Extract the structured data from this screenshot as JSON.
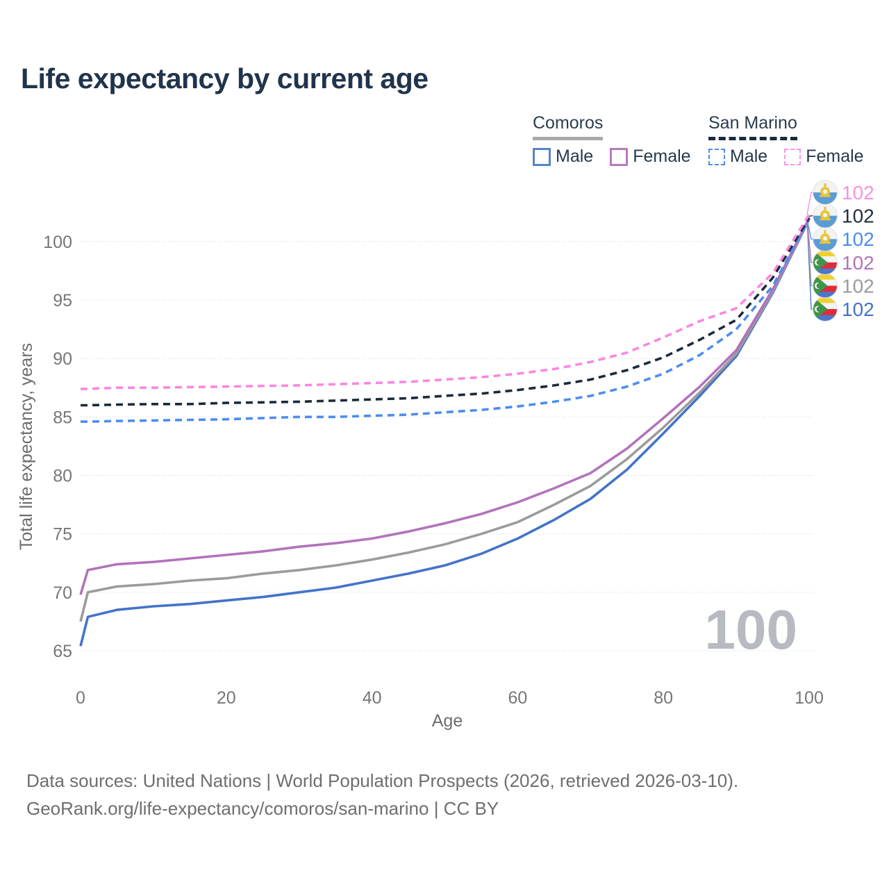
{
  "page": {
    "title": "Life expectancy by current age",
    "watermark": "100",
    "footer": {
      "line1": "Data sources: United Nations | World Population Prospects (2026, retrieved 2026-03-10).",
      "line2": "GeoRank.org/life-expectancy/comoros/san-marino | CC BY"
    }
  },
  "legend": {
    "groups": [
      {
        "label": "Comoros",
        "underline_style": "solid",
        "underline_color": "#a9a9a9",
        "items": [
          {
            "label": "Male",
            "color": "#5585c8",
            "dashed": false
          },
          {
            "label": "Female",
            "color": "#b778c0",
            "dashed": false
          }
        ]
      },
      {
        "label": "San Marino",
        "underline_style": "dashed",
        "underline_color": "#1b2a3a",
        "items": [
          {
            "label": "Male",
            "color": "#4d8cf0",
            "dashed": true
          },
          {
            "label": "Female",
            "color": "#fb93e3",
            "dashed": true
          }
        ]
      }
    ]
  },
  "chart_data": {
    "type": "line",
    "title": "Life expectancy by current age",
    "xlabel": "Age",
    "ylabel": "Total life expectancy, years",
    "xlim": [
      0,
      100
    ],
    "ylim": [
      65,
      102.5
    ],
    "x_ticks": [
      0,
      20,
      40,
      60,
      80,
      100
    ],
    "y_ticks": [
      65,
      70,
      75,
      80,
      85,
      90,
      95,
      100
    ],
    "grid": "horizontal-dotted",
    "grid_color": "#d9d9d9",
    "axis_text_color": "#767676",
    "legend_position": "top-right",
    "x": [
      0,
      1,
      5,
      10,
      15,
      20,
      25,
      30,
      35,
      40,
      45,
      50,
      55,
      60,
      65,
      70,
      75,
      80,
      85,
      90,
      95,
      100
    ],
    "series": [
      {
        "id": "comoros-male",
        "name": "Comoros Male",
        "country": "Comoros",
        "sex": "Male",
        "color": "#4373c9",
        "dashed": false,
        "flag": "comoros",
        "label_row": 5,
        "end_label": "102",
        "label_color": "#4373c9",
        "values": [
          65.4,
          67.9,
          68.5,
          68.8,
          69.0,
          69.3,
          69.6,
          70.0,
          70.4,
          71.0,
          71.6,
          72.3,
          73.3,
          74.6,
          76.2,
          78.0,
          80.5,
          83.6,
          86.8,
          90.2,
          95.6,
          101.9
        ]
      },
      {
        "id": "comoros-total",
        "name": "Comoros Total",
        "country": "Comoros",
        "sex": "Both",
        "color": "#9b9b9b",
        "dashed": false,
        "flag": "comoros",
        "label_row": 4,
        "end_label": "102",
        "label_color": "#9b9b9b",
        "values": [
          67.5,
          70.0,
          70.5,
          70.7,
          71.0,
          71.2,
          71.6,
          71.9,
          72.3,
          72.8,
          73.4,
          74.1,
          75.0,
          76.0,
          77.5,
          79.1,
          81.4,
          84.1,
          87.1,
          90.4,
          95.7,
          101.95
        ]
      },
      {
        "id": "comoros-female",
        "name": "Comoros Female",
        "country": "Comoros",
        "sex": "Female",
        "color": "#b273bb",
        "dashed": false,
        "flag": "comoros",
        "label_row": 3,
        "end_label": "102",
        "label_color": "#b273bb",
        "values": [
          69.8,
          71.9,
          72.4,
          72.6,
          72.9,
          73.2,
          73.5,
          73.9,
          74.2,
          74.6,
          75.2,
          75.9,
          76.7,
          77.7,
          78.9,
          80.2,
          82.3,
          84.9,
          87.6,
          90.7,
          95.9,
          102.0
        ]
      },
      {
        "id": "san-marino-male",
        "name": "San Marino Male",
        "country": "San Marino",
        "sex": "Male",
        "color": "#4d8cf0",
        "dashed": true,
        "flag": "san-marino",
        "label_row": 2,
        "end_label": "102",
        "label_color": "#4d8cf0",
        "values": [
          84.6,
          84.6,
          84.65,
          84.7,
          84.75,
          84.8,
          84.9,
          85.0,
          85.0,
          85.1,
          85.2,
          85.4,
          85.6,
          85.9,
          86.3,
          86.8,
          87.6,
          88.7,
          90.3,
          92.5,
          96.2,
          101.9
        ]
      },
      {
        "id": "san-marino-total",
        "name": "San Marino Total",
        "country": "San Marino",
        "sex": "Both",
        "color": "#1b2a3a",
        "dashed": true,
        "flag": "san-marino",
        "label_row": 1,
        "end_label": "102",
        "label_color": "#22303e",
        "values": [
          86.0,
          86.0,
          86.05,
          86.1,
          86.1,
          86.2,
          86.25,
          86.3,
          86.4,
          86.5,
          86.6,
          86.8,
          87.0,
          87.3,
          87.7,
          88.2,
          89.0,
          90.1,
          91.6,
          93.3,
          96.9,
          102.05
        ]
      },
      {
        "id": "san-marino-female",
        "name": "San Marino Female",
        "country": "San Marino",
        "sex": "Female",
        "color": "#fb87e0",
        "dashed": true,
        "flag": "san-marino",
        "label_row": 0,
        "end_label": "102",
        "label_color": "#f990de",
        "values": [
          87.4,
          87.4,
          87.5,
          87.5,
          87.55,
          87.6,
          87.65,
          87.7,
          87.8,
          87.9,
          88.0,
          88.2,
          88.4,
          88.7,
          89.1,
          89.7,
          90.5,
          91.8,
          93.2,
          94.3,
          97.3,
          102.3
        ]
      }
    ]
  }
}
